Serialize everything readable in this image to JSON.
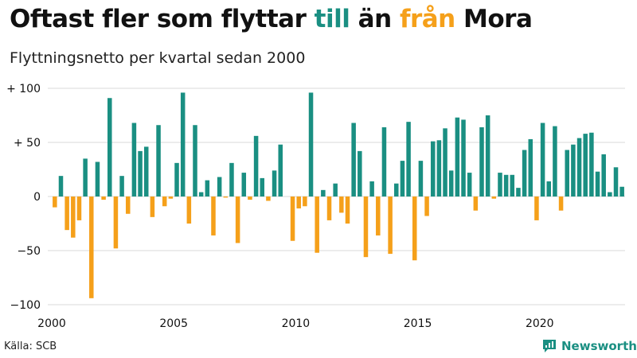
{
  "title": {
    "part1": "Oftast fler som flyttar ",
    "part2": "till",
    "part3": " än ",
    "part4": "från",
    "part5": " Mora"
  },
  "subtitle": "Flyttningsnetto per kvartal sedan 2000",
  "source": "Källa: SCB",
  "brand": {
    "name": "Newsworthy",
    "icon": "newsworthy-logo-icon"
  },
  "colors": {
    "positive": "#1a8f82",
    "negative": "#f5a01a",
    "grid": "#d9d9d9",
    "text": "#111111"
  },
  "chart_data": {
    "type": "bar",
    "ylim": [
      -100,
      100
    ],
    "yticks": [
      100,
      50,
      0,
      -50,
      -100
    ],
    "ytick_labels": [
      "+ 100",
      "+  50",
      "0",
      "−50",
      "−100"
    ],
    "xticks": [
      {
        "label": "2000",
        "index": 0
      },
      {
        "label": "2005",
        "index": 20
      },
      {
        "label": "2010",
        "index": 40
      },
      {
        "label": "2015",
        "index": 60
      },
      {
        "label": "2020",
        "index": 80
      }
    ],
    "start_period": "2000 Q1",
    "values": [
      -10,
      19,
      -31,
      -38,
      -22,
      35,
      -94,
      32,
      -3,
      91,
      -48,
      19,
      -16,
      68,
      42,
      46,
      -19,
      66,
      -9,
      -2,
      31,
      96,
      -25,
      66,
      4,
      15,
      -36,
      18,
      -1,
      31,
      -43,
      22,
      -3,
      56,
      17,
      -4,
      24,
      48,
      0,
      -41,
      -11,
      -9,
      96,
      -52,
      6,
      -22,
      12,
      -15,
      -25,
      68,
      42,
      -56,
      14,
      -36,
      64,
      -53,
      12,
      33,
      69,
      -59,
      33,
      -18,
      51,
      52,
      63,
      24,
      73,
      71,
      22,
      -13,
      64,
      75,
      -2,
      22,
      20,
      20,
      8,
      43,
      53,
      -22,
      68,
      14,
      65,
      -13,
      43,
      48,
      54,
      58,
      59,
      23,
      39,
      4,
      27,
      9
    ]
  }
}
